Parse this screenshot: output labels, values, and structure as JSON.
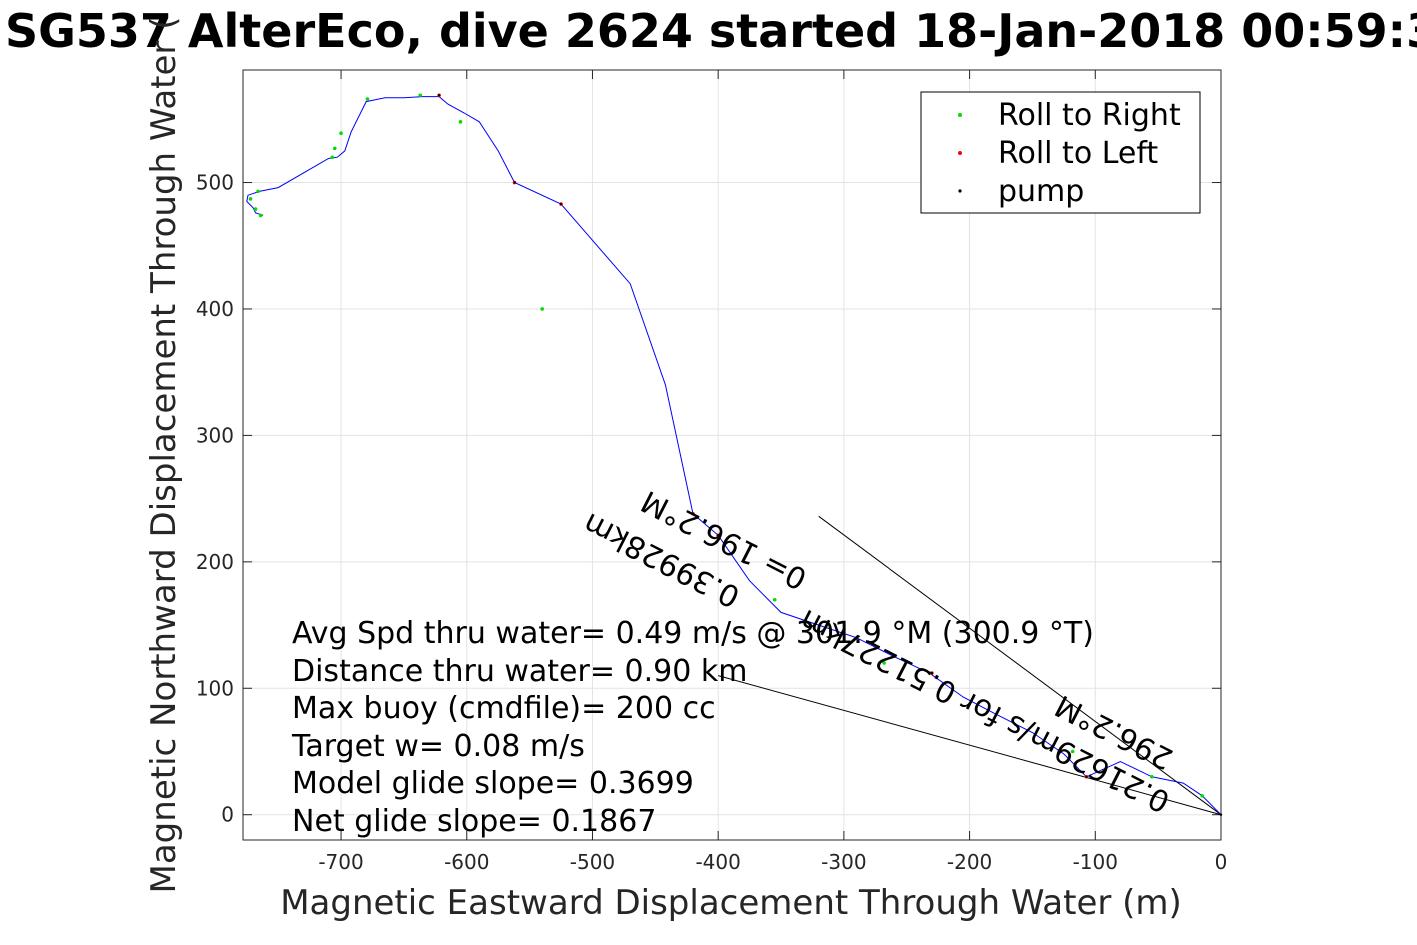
{
  "title": "SG537 AlterEco, dive 2624 started 18-Jan-2018 00:59:3",
  "chart_data": {
    "type": "line",
    "title": "SG537 AlterEco, dive 2624 started 18-Jan-2018 00:59:3",
    "xlabel": "Magnetic Eastward Displacement Through Water (m)",
    "ylabel": "Magnetic Northward Displacement Through Water (",
    "xlim": [
      -778,
      0
    ],
    "ylim": [
      -20,
      589
    ],
    "xticks": [
      -700,
      -600,
      -500,
      -400,
      -300,
      -200,
      -100,
      0
    ],
    "yticks": [
      0,
      100,
      200,
      300,
      400,
      500
    ],
    "grid": true,
    "legend_position": "top-right",
    "colors": {
      "track": "#0000ff",
      "roll_right": "#00dd00",
      "roll_left": "#ff0000",
      "pump": "#000000",
      "current_line": "#000000",
      "grid": "#e3e3e3",
      "axis": "#262626"
    },
    "series": [
      {
        "name": "track",
        "x": [
          0,
          -15,
          -30,
          -55,
          -80,
          -107,
          -125,
          -150,
          -180,
          -205,
          -232,
          -260,
          -290,
          -320,
          -350,
          -375,
          -400,
          -420,
          -442,
          -470,
          -505,
          -525,
          -562,
          -575,
          -590,
          -602,
          -615,
          -622,
          -635,
          -650,
          -665,
          -680,
          -692,
          -697,
          -703,
          -710,
          -750,
          -765,
          -774,
          -775,
          -770,
          -768,
          -762
        ],
        "y": [
          0,
          15,
          25,
          30,
          42,
          30,
          48,
          65,
          80,
          93,
          112,
          125,
          140,
          150,
          160,
          185,
          221,
          238,
          340,
          420,
          460,
          483,
          500,
          525,
          548,
          555,
          562,
          568,
          568,
          567,
          567,
          564,
          540,
          525,
          520,
          519,
          496,
          493,
          490,
          485,
          480,
          476,
          474
        ]
      },
      {
        "name": "Roll to Right",
        "x": [
          -15,
          -55,
          -118,
          -232,
          -268,
          -355,
          -540,
          -605,
          -637,
          -679,
          -700,
          -705,
          -707,
          -766,
          -772,
          -768,
          -764
        ],
        "y": [
          15,
          30,
          50,
          112,
          120,
          170,
          400,
          548,
          569,
          566,
          539,
          527,
          520,
          493,
          487,
          479,
          474
        ]
      },
      {
        "name": "Roll to Left",
        "x": [
          -107,
          -230,
          -400,
          -420,
          -562,
          -525,
          -622
        ],
        "y": [
          30,
          112,
          221,
          238,
          500,
          483,
          569
        ]
      },
      {
        "name": "pump",
        "x": [
          0,
          -107,
          -230,
          -400,
          -420,
          -562,
          -525,
          -622
        ],
        "y": [
          0,
          30,
          112,
          221,
          238,
          500,
          483,
          569
        ]
      }
    ],
    "current_lines": [
      {
        "x": [
          0,
          -320
        ],
        "y": [
          0,
          236
        ]
      },
      {
        "x": [
          0,
          -400
        ],
        "y": [
          0,
          110
        ]
      }
    ],
    "rotated_labels": [
      {
        "text": "0.21629m/s for 0.51227km",
        "angle": 207
      },
      {
        "text": "296.2°M",
        "angle": 207
      },
      {
        "text": "0.39928km",
        "angle": 207
      },
      {
        "text": "0= 196.2°M",
        "angle": 207
      }
    ],
    "annotations": [
      "Avg Spd thru water=  0.49 m/s @ 301.9 °M (300.9 °T)",
      "Distance thru water=  0.90 km",
      "Max buoy (cmdfile)= 200 cc",
      "Target w= 0.08 m/s",
      "Model glide slope= 0.3699",
      "Net glide slope= 0.1867"
    ]
  }
}
